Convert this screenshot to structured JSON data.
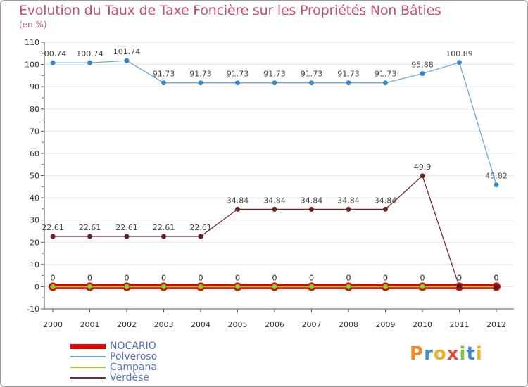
{
  "chart_data": {
    "type": "line",
    "title": "Evolution du Taux de Taxe Foncière sur les Propriétés Non Bâties",
    "ylabel": "(en %)",
    "xlabel": "",
    "categories": [
      "2000",
      "2001",
      "2002",
      "2003",
      "2004",
      "2005",
      "2006",
      "2007",
      "2008",
      "2009",
      "2010",
      "2011",
      "2012"
    ],
    "ylim": [
      -10,
      110
    ],
    "yticks": [
      -10,
      0,
      10,
      20,
      30,
      40,
      50,
      60,
      70,
      80,
      90,
      100,
      110
    ],
    "series": [
      {
        "name": "NOCARIO",
        "color": "#e00000",
        "values": [
          0,
          0,
          0,
          0,
          0,
          0,
          0,
          0,
          0,
          0,
          0,
          0,
          0
        ],
        "labels": [
          "0",
          "0",
          "0",
          "0",
          "0",
          "0",
          "0",
          "0",
          "0",
          "0",
          "0",
          "0",
          "0"
        ]
      },
      {
        "name": "Polveroso",
        "color": "#6fa8d8",
        "values": [
          100.74,
          100.74,
          101.74,
          91.73,
          91.73,
          91.73,
          91.73,
          91.73,
          91.73,
          91.73,
          95.88,
          100.89,
          45.82
        ],
        "labels": [
          "100.74",
          "100.74",
          "101.74",
          "91.73",
          "91.73",
          "91.73",
          "91.73",
          "91.73",
          "91.73",
          "91.73",
          "95.88",
          "100.89",
          "45.82"
        ]
      },
      {
        "name": "Campana",
        "color": "#99cc33",
        "values": [
          0,
          0,
          0,
          0,
          0,
          0,
          0,
          0,
          0,
          0,
          0,
          0,
          0
        ],
        "labels": [
          "0",
          "0",
          "0",
          "0",
          "0",
          "0",
          "0",
          "0",
          "0",
          "0",
          "0",
          "0",
          "0"
        ]
      },
      {
        "name": "Verdèse",
        "color": "#7a2a2a",
        "values": [
          22.61,
          22.61,
          22.61,
          22.61,
          22.61,
          34.84,
          34.84,
          34.84,
          34.84,
          34.84,
          49.9,
          0,
          0
        ],
        "labels": [
          "22.61",
          "22.61",
          "22.61",
          "22.61",
          "22.61",
          "34.84",
          "34.84",
          "34.84",
          "34.84",
          "34.84",
          "49.9",
          "0",
          "0"
        ]
      }
    ],
    "legend": [
      "NOCARIO",
      "Polveroso",
      "Campana",
      "Verdèse"
    ],
    "logo_text": "Proxiti"
  }
}
